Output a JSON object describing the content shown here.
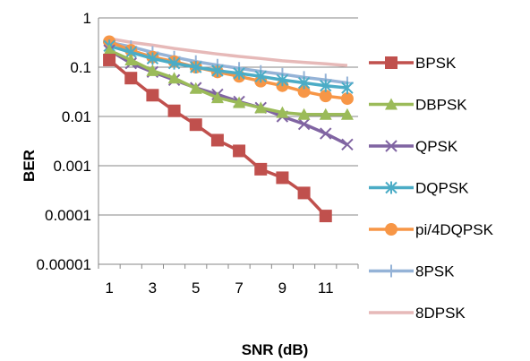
{
  "chart_data": {
    "type": "line",
    "title": "",
    "xlabel": "SNR (dB)",
    "ylabel": "BER",
    "yscale": "log",
    "ylim": [
      1e-05,
      1
    ],
    "y_ticks": [
      "1",
      "0.1",
      "0.01",
      "0.001",
      "0.0001",
      "0.00001"
    ],
    "x_ticks": [
      "1",
      "3",
      "5",
      "7",
      "9",
      "11"
    ],
    "x": [
      1,
      2,
      3,
      4,
      5,
      6,
      7,
      8,
      9,
      10,
      11,
      12
    ],
    "grid": "horizontal",
    "legend_position": "right",
    "series": [
      {
        "name": "BPSK",
        "color": "#C0504D",
        "marker": "square",
        "values": [
          0.14,
          0.06,
          0.027,
          0.013,
          0.0068,
          0.0033,
          0.002,
          0.00085,
          0.00057,
          0.00028,
          9.55e-05,
          null
        ]
      },
      {
        "name": "DBPSK",
        "color": "#9BBB59",
        "marker": "triangle",
        "values": [
          0.22,
          0.14,
          0.085,
          0.06,
          0.037,
          0.024,
          0.019,
          0.015,
          0.012,
          0.011,
          0.011,
          0.011
        ]
      },
      {
        "name": "QPSK",
        "color": "#8064A2",
        "marker": "x",
        "values": [
          0.22,
          0.12,
          0.08,
          0.055,
          0.038,
          0.028,
          0.02,
          0.015,
          0.01,
          0.007,
          0.0045,
          0.0027
        ]
      },
      {
        "name": "DQPSK",
        "color": "#4BACC6",
        "marker": "star",
        "values": [
          0.27,
          0.2,
          0.15,
          0.12,
          0.1,
          0.085,
          0.075,
          0.065,
          0.055,
          0.048,
          0.042,
          0.038
        ]
      },
      {
        "name": "pi/4DQPSK",
        "color": "#F79646",
        "marker": "circle",
        "values": [
          0.33,
          0.22,
          0.16,
          0.13,
          0.1,
          0.08,
          0.065,
          0.052,
          0.042,
          0.032,
          0.026,
          0.023
        ]
      },
      {
        "name": "8PSK",
        "color": "#95B3D7",
        "marker": "plus",
        "values": [
          0.32,
          0.26,
          0.2,
          0.16,
          0.13,
          0.11,
          0.095,
          0.082,
          0.072,
          0.062,
          0.055,
          0.048
        ]
      },
      {
        "name": "8DPSK",
        "color": "#E6B9B8",
        "marker": "none",
        "values": [
          0.38,
          0.32,
          0.28,
          0.24,
          0.21,
          0.185,
          0.165,
          0.15,
          0.135,
          0.125,
          0.117,
          0.108
        ]
      }
    ]
  }
}
